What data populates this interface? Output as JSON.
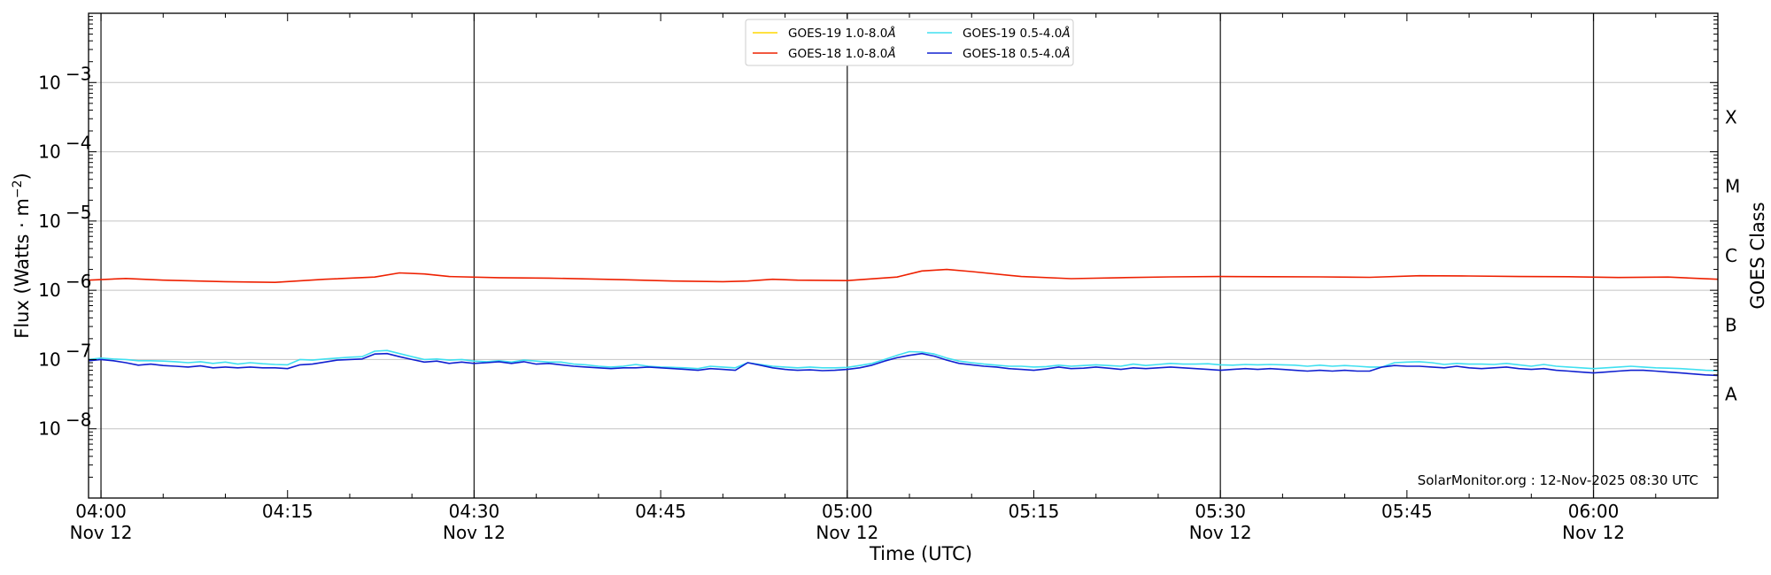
{
  "chart_data": {
    "type": "line",
    "y_scale": "log",
    "ylim": [
      1e-09,
      0.01
    ],
    "ylabel_prefix": "Flux (Watts · m",
    "ylabel_exp": "−2",
    "ylabel_suffix": ")",
    "xlabel": "Time (UTC)",
    "right_ylabel": "GOES Class",
    "xlim": [
      "2025-11-12 03:59",
      "2025-11-12 06:10"
    ],
    "grid": "horizontal gridlines at each decade; vertical lines every 30 min",
    "legend_position": "top-center",
    "credit": "SolarMonitor.org : 12-Nov-2025 08:30 UTC",
    "y_ticks": [
      {
        "base": "10",
        "exp": "−8",
        "value": 1e-08
      },
      {
        "base": "10",
        "exp": "−7",
        "value": 1e-07
      },
      {
        "base": "10",
        "exp": "−6",
        "value": 1e-06
      },
      {
        "base": "10",
        "exp": "−5",
        "value": 1e-05
      },
      {
        "base": "10",
        "exp": "−4",
        "value": 0.0001
      },
      {
        "base": "10",
        "exp": "−3",
        "value": 0.001
      }
    ],
    "x_ticks": [
      {
        "time": "04:00",
        "date": "Nov 12",
        "minute": 0
      },
      {
        "time": "04:15",
        "date": "",
        "minute": 15
      },
      {
        "time": "04:30",
        "date": "Nov 12",
        "minute": 30
      },
      {
        "time": "04:45",
        "date": "",
        "minute": 45
      },
      {
        "time": "05:00",
        "date": "Nov 12",
        "minute": 60
      },
      {
        "time": "05:15",
        "date": "",
        "minute": 75
      },
      {
        "time": "05:30",
        "date": "Nov 12",
        "minute": 90
      },
      {
        "time": "05:45",
        "date": "",
        "minute": 105
      },
      {
        "time": "06:00",
        "date": "Nov 12",
        "minute": 120
      }
    ],
    "goes_classes": [
      {
        "label": "X",
        "value": 0.000316
      },
      {
        "label": "M",
        "value": 3.16e-05
      },
      {
        "label": "C",
        "value": 3.16e-06
      },
      {
        "label": "B",
        "value": 3.16e-07
      },
      {
        "label": "A",
        "value": 3.16e-08
      }
    ],
    "series": [
      {
        "name": "GOES-19 1.0-8.0",
        "color": "#ffd700",
        "minutes": [],
        "values": []
      },
      {
        "name": "GOES-19 0.5-4.0",
        "color": "#40e0f0",
        "minutes": [
          -1,
          0,
          1,
          2,
          3,
          4,
          5,
          6,
          7,
          8,
          9,
          10,
          11,
          12,
          13,
          14,
          15,
          16,
          17,
          18,
          19,
          20,
          21,
          22,
          23,
          24,
          25,
          26,
          27,
          28,
          29,
          30,
          31,
          32,
          33,
          34,
          35,
          36,
          37,
          38,
          39,
          40,
          41,
          42,
          43,
          44,
          45,
          46,
          47,
          48,
          49,
          50,
          51,
          52,
          53,
          54,
          55,
          56,
          57,
          58,
          59,
          60,
          61,
          62,
          63,
          64,
          65,
          66,
          67,
          68,
          69,
          70,
          71,
          72,
          73,
          74,
          75,
          76,
          77,
          78,
          79,
          80,
          81,
          82,
          83,
          84,
          85,
          86,
          87,
          88,
          89,
          90,
          91,
          92,
          93,
          94,
          95,
          96,
          97,
          98,
          99,
          100,
          101,
          102,
          103,
          104,
          105,
          106,
          107,
          108,
          109,
          110,
          111,
          112,
          113,
          114,
          115,
          116,
          117,
          118,
          119,
          120,
          121,
          122,
          123,
          124,
          125,
          126,
          127,
          128,
          129,
          130
        ],
        "values": [
          1e-07,
          1.05e-07,
          1.02e-07,
          1e-07,
          9.6e-08,
          9.6e-08,
          9.5e-08,
          9.3e-08,
          9e-08,
          9.3e-08,
          8.8e-08,
          9.2e-08,
          8.6e-08,
          9e-08,
          8.7e-08,
          8.5e-08,
          8.4e-08,
          1e-07,
          9.8e-08,
          1.02e-07,
          1.05e-07,
          1.08e-07,
          1.1e-07,
          1.32e-07,
          1.35e-07,
          1.22e-07,
          1.1e-07,
          1e-07,
          1.02e-07,
          9.8e-08,
          1e-07,
          9.5e-08,
          9.3e-08,
          9.6e-08,
          9.2e-08,
          9.8e-08,
          9.5e-08,
          9.2e-08,
          9.2e-08,
          8.6e-08,
          8.4e-08,
          8e-08,
          7.8e-08,
          8e-08,
          8.5e-08,
          8e-08,
          7.8e-08,
          7.7e-08,
          7.6e-08,
          7.4e-08,
          8e-08,
          7.8e-08,
          7.6e-08,
          9e-08,
          8.5e-08,
          8e-08,
          7.8e-08,
          7.6e-08,
          7.8e-08,
          7.6e-08,
          7.6e-08,
          7.7e-08,
          8.2e-08,
          8.8e-08,
          1e-07,
          1.15e-07,
          1.3e-07,
          1.28e-07,
          1.2e-07,
          1.05e-07,
          9.5e-08,
          9e-08,
          8.6e-08,
          8.3e-08,
          8e-08,
          8e-08,
          7.8e-08,
          7.9e-08,
          8.3e-08,
          8e-08,
          8.2e-08,
          8.4e-08,
          8.2e-08,
          8e-08,
          8.6e-08,
          8.2e-08,
          8.5e-08,
          8.8e-08,
          8.6e-08,
          8.6e-08,
          8.7e-08,
          8.4e-08,
          8.3e-08,
          8.5e-08,
          8.4e-08,
          8.5e-08,
          8.4e-08,
          8.3e-08,
          8e-08,
          8.3e-08,
          8e-08,
          8.2e-08,
          8e-08,
          7.8e-08,
          7.8e-08,
          9e-08,
          9.2e-08,
          9.3e-08,
          9e-08,
          8.5e-08,
          8.8e-08,
          8.6e-08,
          8.6e-08,
          8.5e-08,
          8.8e-08,
          8.4e-08,
          8e-08,
          8.5e-08,
          8e-08,
          7.8e-08,
          7.6e-08,
          7.4e-08,
          7.6e-08,
          7.8e-08,
          8e-08,
          7.8e-08,
          7.6e-08,
          7.5e-08,
          7.4e-08,
          7.2e-08,
          7e-08,
          6.9e-08
        ]
      },
      {
        "name": "GOES-18 1.0-8.0",
        "color": "#ee2000",
        "minutes": [
          -1,
          2,
          5,
          10,
          14,
          18,
          22,
          24,
          26,
          28,
          32,
          36,
          42,
          46,
          50,
          52,
          54,
          56,
          60,
          64,
          66,
          68,
          70,
          74,
          78,
          82,
          86,
          90,
          94,
          98,
          102,
          106,
          110,
          114,
          118,
          122,
          126,
          130
        ],
        "values": [
          1.4e-06,
          1.48e-06,
          1.4e-06,
          1.33e-06,
          1.3e-06,
          1.44e-06,
          1.55e-06,
          1.78e-06,
          1.72e-06,
          1.58e-06,
          1.52e-06,
          1.5e-06,
          1.42e-06,
          1.36e-06,
          1.33e-06,
          1.36e-06,
          1.44e-06,
          1.4e-06,
          1.38e-06,
          1.55e-06,
          1.9e-06,
          2e-06,
          1.86e-06,
          1.58e-06,
          1.47e-06,
          1.52e-06,
          1.56e-06,
          1.58e-06,
          1.57e-06,
          1.56e-06,
          1.54e-06,
          1.62e-06,
          1.61e-06,
          1.58e-06,
          1.57e-06,
          1.53e-06,
          1.55e-06,
          1.44e-06
        ]
      },
      {
        "name": "GOES-18 0.5-4.0",
        "color": "#1020d0",
        "minutes": [
          -1,
          0,
          1,
          2,
          3,
          4,
          5,
          6,
          7,
          8,
          9,
          10,
          11,
          12,
          13,
          14,
          15,
          16,
          17,
          18,
          19,
          20,
          21,
          22,
          23,
          24,
          25,
          26,
          27,
          28,
          29,
          30,
          31,
          32,
          33,
          34,
          35,
          36,
          37,
          38,
          39,
          40,
          41,
          42,
          43,
          44,
          45,
          46,
          47,
          48,
          49,
          50,
          51,
          52,
          53,
          54,
          55,
          56,
          57,
          58,
          59,
          60,
          61,
          62,
          63,
          64,
          65,
          66,
          67,
          68,
          69,
          70,
          71,
          72,
          73,
          74,
          75,
          76,
          77,
          78,
          79,
          80,
          81,
          82,
          83,
          84,
          85,
          86,
          87,
          88,
          89,
          90,
          91,
          92,
          93,
          94,
          95,
          96,
          97,
          98,
          99,
          100,
          101,
          102,
          103,
          104,
          105,
          106,
          107,
          108,
          109,
          110,
          111,
          112,
          113,
          114,
          115,
          116,
          117,
          118,
          119,
          120,
          121,
          122,
          123,
          124,
          125,
          126,
          127,
          128,
          129,
          130
        ],
        "values": [
          9.6e-08,
          1e-07,
          9.6e-08,
          9e-08,
          8.3e-08,
          8.6e-08,
          8.2e-08,
          8e-08,
          7.8e-08,
          8.1e-08,
          7.6e-08,
          7.8e-08,
          7.6e-08,
          7.8e-08,
          7.6e-08,
          7.6e-08,
          7.4e-08,
          8.4e-08,
          8.6e-08,
          9.2e-08,
          9.8e-08,
          1e-07,
          1.02e-07,
          1.2e-07,
          1.22e-07,
          1.1e-07,
          1e-07,
          9.2e-08,
          9.5e-08,
          8.8e-08,
          9.2e-08,
          8.8e-08,
          9e-08,
          9.3e-08,
          8.8e-08,
          9.3e-08,
          8.6e-08,
          8.8e-08,
          8.4e-08,
          8e-08,
          7.8e-08,
          7.6e-08,
          7.4e-08,
          7.6e-08,
          7.6e-08,
          7.8e-08,
          7.6e-08,
          7.4e-08,
          7.2e-08,
          7e-08,
          7.4e-08,
          7.2e-08,
          7e-08,
          9e-08,
          8.3e-08,
          7.6e-08,
          7.2e-08,
          7e-08,
          7.1e-08,
          6.9e-08,
          7e-08,
          7.2e-08,
          7.6e-08,
          8.3e-08,
          9.5e-08,
          1.06e-07,
          1.15e-07,
          1.22e-07,
          1.12e-07,
          9.8e-08,
          8.8e-08,
          8.4e-08,
          8e-08,
          7.8e-08,
          7.4e-08,
          7.2e-08,
          7e-08,
          7.3e-08,
          7.8e-08,
          7.4e-08,
          7.5e-08,
          7.8e-08,
          7.5e-08,
          7.2e-08,
          7.6e-08,
          7.4e-08,
          7.6e-08,
          7.8e-08,
          7.6e-08,
          7.4e-08,
          7.2e-08,
          7e-08,
          7.2e-08,
          7.4e-08,
          7.2e-08,
          7.4e-08,
          7.2e-08,
          7e-08,
          6.8e-08,
          7e-08,
          6.8e-08,
          7e-08,
          6.8e-08,
          6.8e-08,
          7.8e-08,
          8.2e-08,
          8e-08,
          8e-08,
          7.8e-08,
          7.6e-08,
          8e-08,
          7.6e-08,
          7.4e-08,
          7.6e-08,
          7.8e-08,
          7.4e-08,
          7.2e-08,
          7.4e-08,
          7e-08,
          6.8e-08,
          6.6e-08,
          6.4e-08,
          6.6e-08,
          6.8e-08,
          7e-08,
          7e-08,
          6.8e-08,
          6.6e-08,
          6.4e-08,
          6.2e-08,
          6e-08,
          5.9e-08
        ]
      }
    ]
  },
  "legend": {
    "entries": [
      {
        "name": "GOES-19 1.0-8.0",
        "color": "#ffd700",
        "unit": "Å"
      },
      {
        "name": "GOES-18 1.0-8.0",
        "color": "#ee2000",
        "unit": "Å"
      },
      {
        "name": "GOES-19 0.5-4.0",
        "color": "#40e0f0",
        "unit": "Å"
      },
      {
        "name": "GOES-18 0.5-4.0",
        "color": "#1020d0",
        "unit": "Å"
      }
    ]
  }
}
